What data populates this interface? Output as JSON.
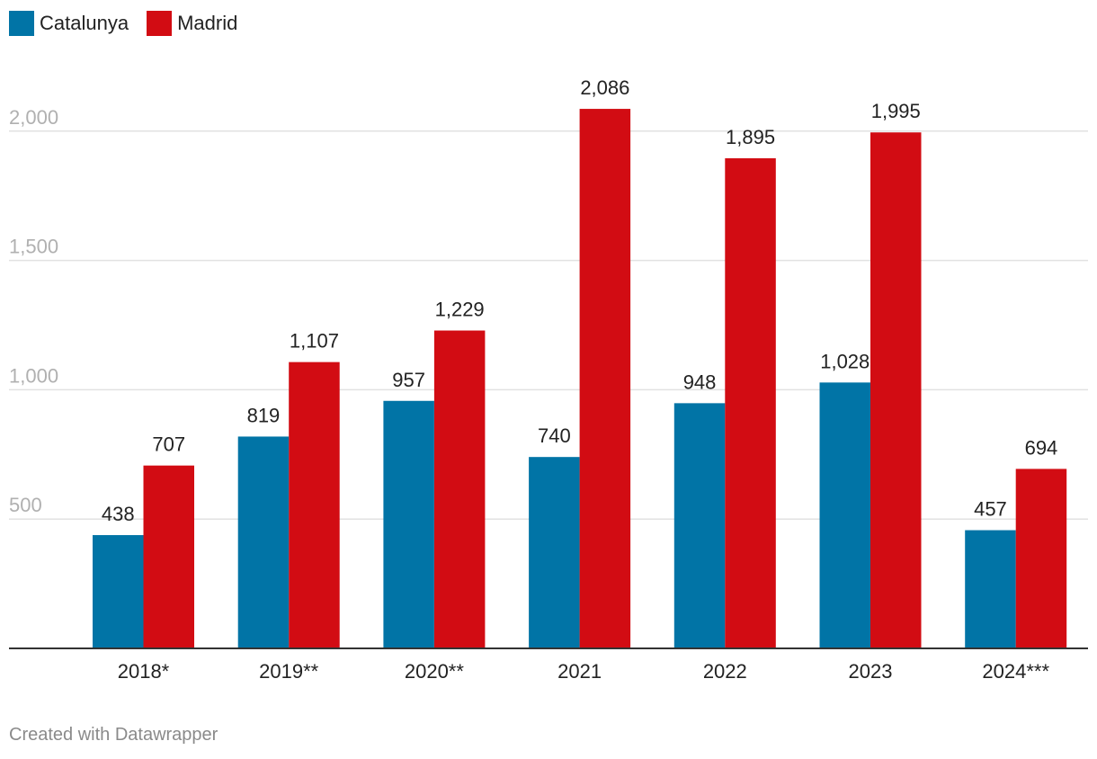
{
  "legend": {
    "series0_label": "Catalunya",
    "series1_label": "Madrid"
  },
  "credit": "Created with Datawrapper",
  "colors": {
    "Catalunya": "#0174a6",
    "Madrid": "#d20c13",
    "grid": "#e2e2e2",
    "axis": "#333333"
  },
  "chart_data": {
    "type": "bar",
    "categories": [
      "2018*",
      "2019**",
      "2020**",
      "2021",
      "2022",
      "2023",
      "2024***"
    ],
    "series": [
      {
        "name": "Catalunya",
        "values": [
          438,
          819,
          957,
          740,
          948,
          1028,
          457
        ],
        "labels": [
          "438",
          "819",
          "957",
          "740",
          "948",
          "1,028",
          "457"
        ]
      },
      {
        "name": "Madrid",
        "values": [
          707,
          1107,
          1229,
          2086,
          1895,
          1995,
          694
        ],
        "labels": [
          "707",
          "1,107",
          "1,229",
          "2,086",
          "1,895",
          "1,995",
          "694"
        ]
      }
    ],
    "yticks": [
      500,
      1000,
      1500,
      2000
    ],
    "ytick_labels": [
      "500",
      "1,000",
      "1,500",
      "2,000"
    ],
    "ylim": [
      0,
      2000
    ],
    "grid": true,
    "legend_position": "top-left"
  }
}
